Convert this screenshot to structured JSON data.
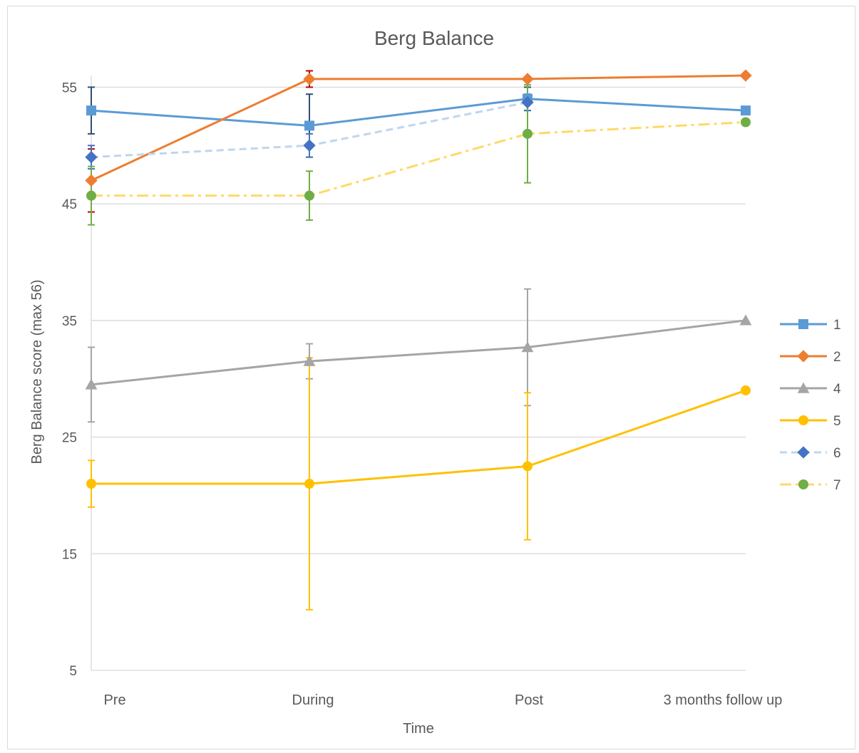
{
  "chart_data": {
    "type": "line",
    "title": "Berg Balance",
    "xlabel": "Time",
    "ylabel": "Berg Balance score (max 56)",
    "categories": [
      "Pre",
      "During",
      "Post",
      "3 months follow up"
    ],
    "yticks": [
      5,
      15,
      25,
      35,
      45,
      55
    ],
    "ylim": [
      5,
      56
    ],
    "grid": true,
    "legend_position": "right",
    "series": [
      {
        "name": "1",
        "values": [
          53,
          51.7,
          54,
          53
        ],
        "error": [
          2,
          2.7,
          1,
          null
        ],
        "color": "#5b9bd5",
        "marker": "square",
        "dash": "solid",
        "error_color": "#2f4f74"
      },
      {
        "name": "2",
        "values": [
          47,
          55.7,
          55.7,
          56
        ],
        "error": [
          2.7,
          0.7,
          null,
          null
        ],
        "color": "#ed7d31",
        "marker": "diamond",
        "dash": "solid",
        "error_color": "#c00000"
      },
      {
        "name": "4",
        "values": [
          29.5,
          31.5,
          32.7,
          35
        ],
        "error": [
          3.2,
          1.5,
          5,
          null
        ],
        "color": "#a5a5a5",
        "marker": "triangle",
        "dash": "solid",
        "error_color": "#a5a5a5"
      },
      {
        "name": "5",
        "values": [
          21,
          21,
          22.5,
          29
        ],
        "error": [
          2,
          10.8,
          6.3,
          null
        ],
        "color": "#ffc000",
        "marker": "circle",
        "dash": "solid",
        "error_color": "#ffc000"
      },
      {
        "name": "6",
        "values": [
          49,
          50,
          53.7,
          null
        ],
        "error": [
          1,
          1,
          0.7,
          null
        ],
        "color": "#bdd7ee",
        "marker": "diamond",
        "dash": "dash",
        "error_color": "#4472c4",
        "marker_color": "#4472c4"
      },
      {
        "name": "7",
        "values": [
          45.7,
          45.7,
          51,
          52
        ],
        "error": [
          2.5,
          2.1,
          4.2,
          null
        ],
        "color": "#ffd966",
        "marker": "circle",
        "dash": "dashdot",
        "error_color": "#70ad47",
        "marker_color": "#70ad47"
      }
    ]
  }
}
